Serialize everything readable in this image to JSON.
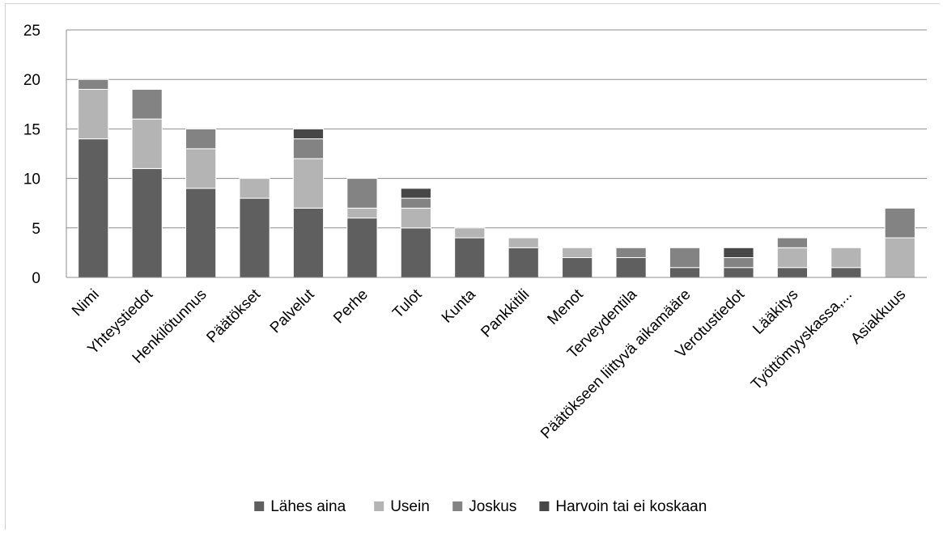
{
  "chart_data": {
    "type": "bar",
    "stacked": true,
    "categories": [
      "Nimi",
      "Yhteystiedot",
      "Henkilötunnus",
      "Päätökset",
      "Palvelut",
      "Perhe",
      "Tulot",
      "Kunta",
      "Pankkitili",
      "Menot",
      "Terveydentila",
      "Päätökseen liittyvä aikamääre",
      "Verotustiedot",
      "Lääkitys",
      "Työttömyyskassa,...",
      "Asiakkuus"
    ],
    "series": [
      {
        "name": "Lähes aina",
        "color": "#5f5f5f",
        "values": [
          14,
          11,
          9,
          8,
          7,
          6,
          5,
          4,
          3,
          2,
          2,
          1,
          1,
          1,
          1,
          0
        ]
      },
      {
        "name": "Usein",
        "color": "#b4b4b4",
        "values": [
          5,
          5,
          4,
          2,
          5,
          1,
          2,
          1,
          1,
          1,
          0,
          0,
          0,
          2,
          2,
          4
        ]
      },
      {
        "name": "Joskus",
        "color": "#838383",
        "values": [
          1,
          3,
          2,
          0,
          2,
          3,
          1,
          0,
          0,
          0,
          1,
          2,
          1,
          1,
          0,
          3
        ]
      },
      {
        "name": "Harvoin tai ei koskaan",
        "color": "#474747",
        "values": [
          0,
          0,
          0,
          0,
          1,
          0,
          1,
          0,
          0,
          0,
          0,
          0,
          1,
          0,
          0,
          0
        ]
      }
    ],
    "title": "",
    "xlabel": "",
    "ylabel": "",
    "ylim": [
      0,
      25
    ],
    "yticks": [
      "0",
      "5",
      "10",
      "15",
      "20",
      "25"
    ],
    "grid": true,
    "legend_position": "bottom"
  }
}
